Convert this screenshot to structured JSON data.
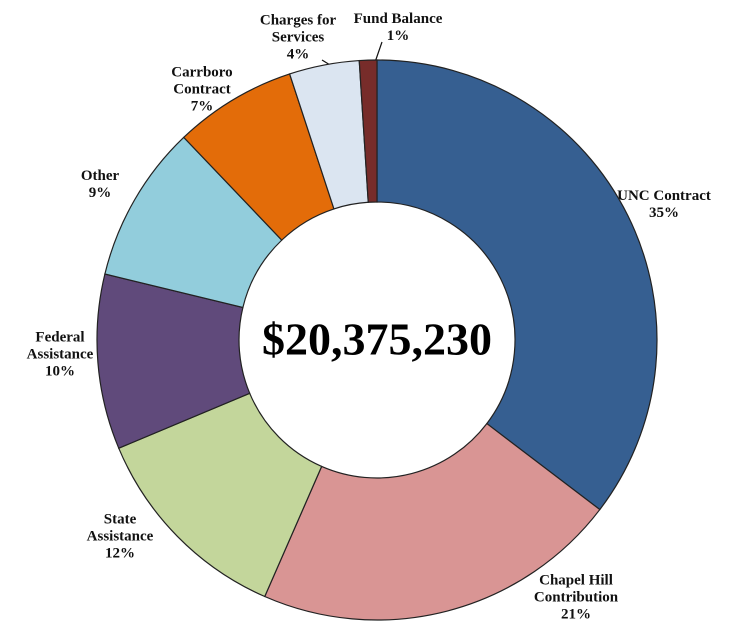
{
  "chart_data": {
    "type": "donut",
    "center_label": "$20,375,230",
    "categories": [
      "UNC Contract",
      "Chapel Hill Contribution",
      "State Assistance",
      "Federal Assistance",
      "Other",
      "Carrboro Contract",
      "Charges for Services",
      "Fund Balance"
    ],
    "values": [
      35,
      21,
      12,
      10,
      9,
      7,
      4,
      1
    ],
    "value_labels": [
      "35%",
      "21%",
      "12%",
      "10%",
      "9%",
      "7%",
      "4%",
      "1%"
    ],
    "colors": [
      "#365f91",
      "#d99594",
      "#c3d69b",
      "#604a7b",
      "#92cddc",
      "#e36c09",
      "#dbe5f1",
      "#772c2a"
    ]
  }
}
